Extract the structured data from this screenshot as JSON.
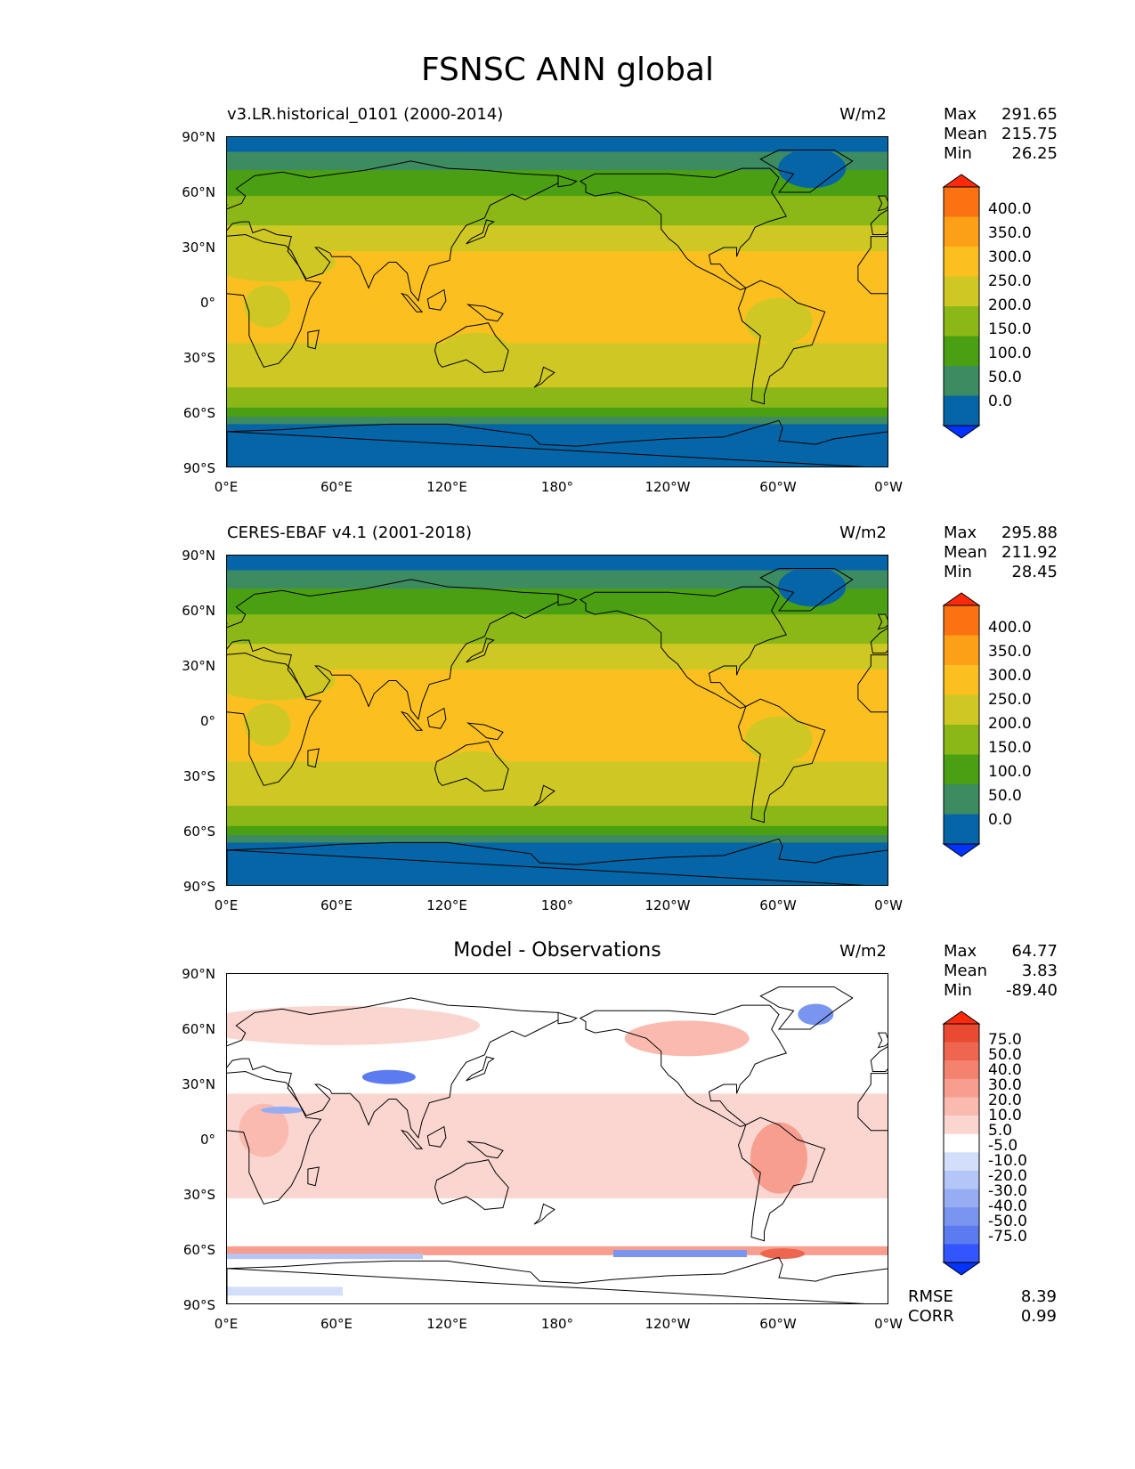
{
  "figure": {
    "title": "FSNSC ANN global",
    "units": "W/m2",
    "lat_ticks": [
      "90°N",
      "60°N",
      "30°N",
      "0°",
      "30°S",
      "60°S",
      "90°S"
    ],
    "lon_ticks": [
      "0°E",
      "60°E",
      "120°E",
      "180°",
      "120°W",
      "60°W",
      "0°W"
    ]
  },
  "panels": [
    {
      "title": "v3.LR.historical_0101 (2000-2014)",
      "stats": {
        "max_label": "Max",
        "max": "291.65",
        "mean_label": "Mean",
        "mean": "215.75",
        "min_label": "Min",
        "min": "26.25"
      },
      "colorbar_labels": [
        "400.0",
        "350.0",
        "300.0",
        "250.0",
        "200.0",
        "150.0",
        "100.0",
        "50.0",
        "0.0"
      ]
    },
    {
      "title": "CERES-EBAF v4.1 (2001-2018)",
      "stats": {
        "max_label": "Max",
        "max": "295.88",
        "mean_label": "Mean",
        "mean": "211.92",
        "min_label": "Min",
        "min": "28.45"
      },
      "colorbar_labels": [
        "400.0",
        "350.0",
        "300.0",
        "250.0",
        "200.0",
        "150.0",
        "100.0",
        "50.0",
        "0.0"
      ]
    },
    {
      "title": "Model - Observations",
      "stats": {
        "max_label": "Max",
        "max": "64.77",
        "mean_label": "Mean",
        "mean": "3.83",
        "min_label": "Min",
        "min": "-89.40"
      },
      "colorbar_labels": [
        "75.0",
        "50.0",
        "40.0",
        "30.0",
        "20.0",
        "10.0",
        "5.0",
        "-5.0",
        "-10.0",
        "-20.0",
        "-30.0",
        "-40.0",
        "-50.0",
        "-75.0"
      ],
      "metrics": {
        "rmse_label": "RMSE",
        "rmse": "8.39",
        "corr_label": "CORR",
        "corr": "0.99"
      }
    }
  ],
  "colors": {
    "field": [
      "#0033ff",
      "#0565a6",
      "#3d8b60",
      "#4aa012",
      "#8bb816",
      "#cfc824",
      "#fbc020",
      "#fca018",
      "#fb7212",
      "#ff2a0c"
    ],
    "diff": [
      "#0033ff",
      "#3355ff",
      "#5c7bf0",
      "#7a95f0",
      "#97adf3",
      "#b4c5f7",
      "#d3defa",
      "#ffffff",
      "#fbd6d0",
      "#fbbab0",
      "#f79e8f",
      "#f3826f",
      "#ef6650",
      "#ea4a32",
      "#ff2a0c"
    ],
    "land_outline": "#000000"
  },
  "chart_data": {
    "type": "heatmap",
    "projection": "PlateCarree",
    "x_range": [
      0,
      360
    ],
    "y_range": [
      -90,
      90
    ]
  }
}
